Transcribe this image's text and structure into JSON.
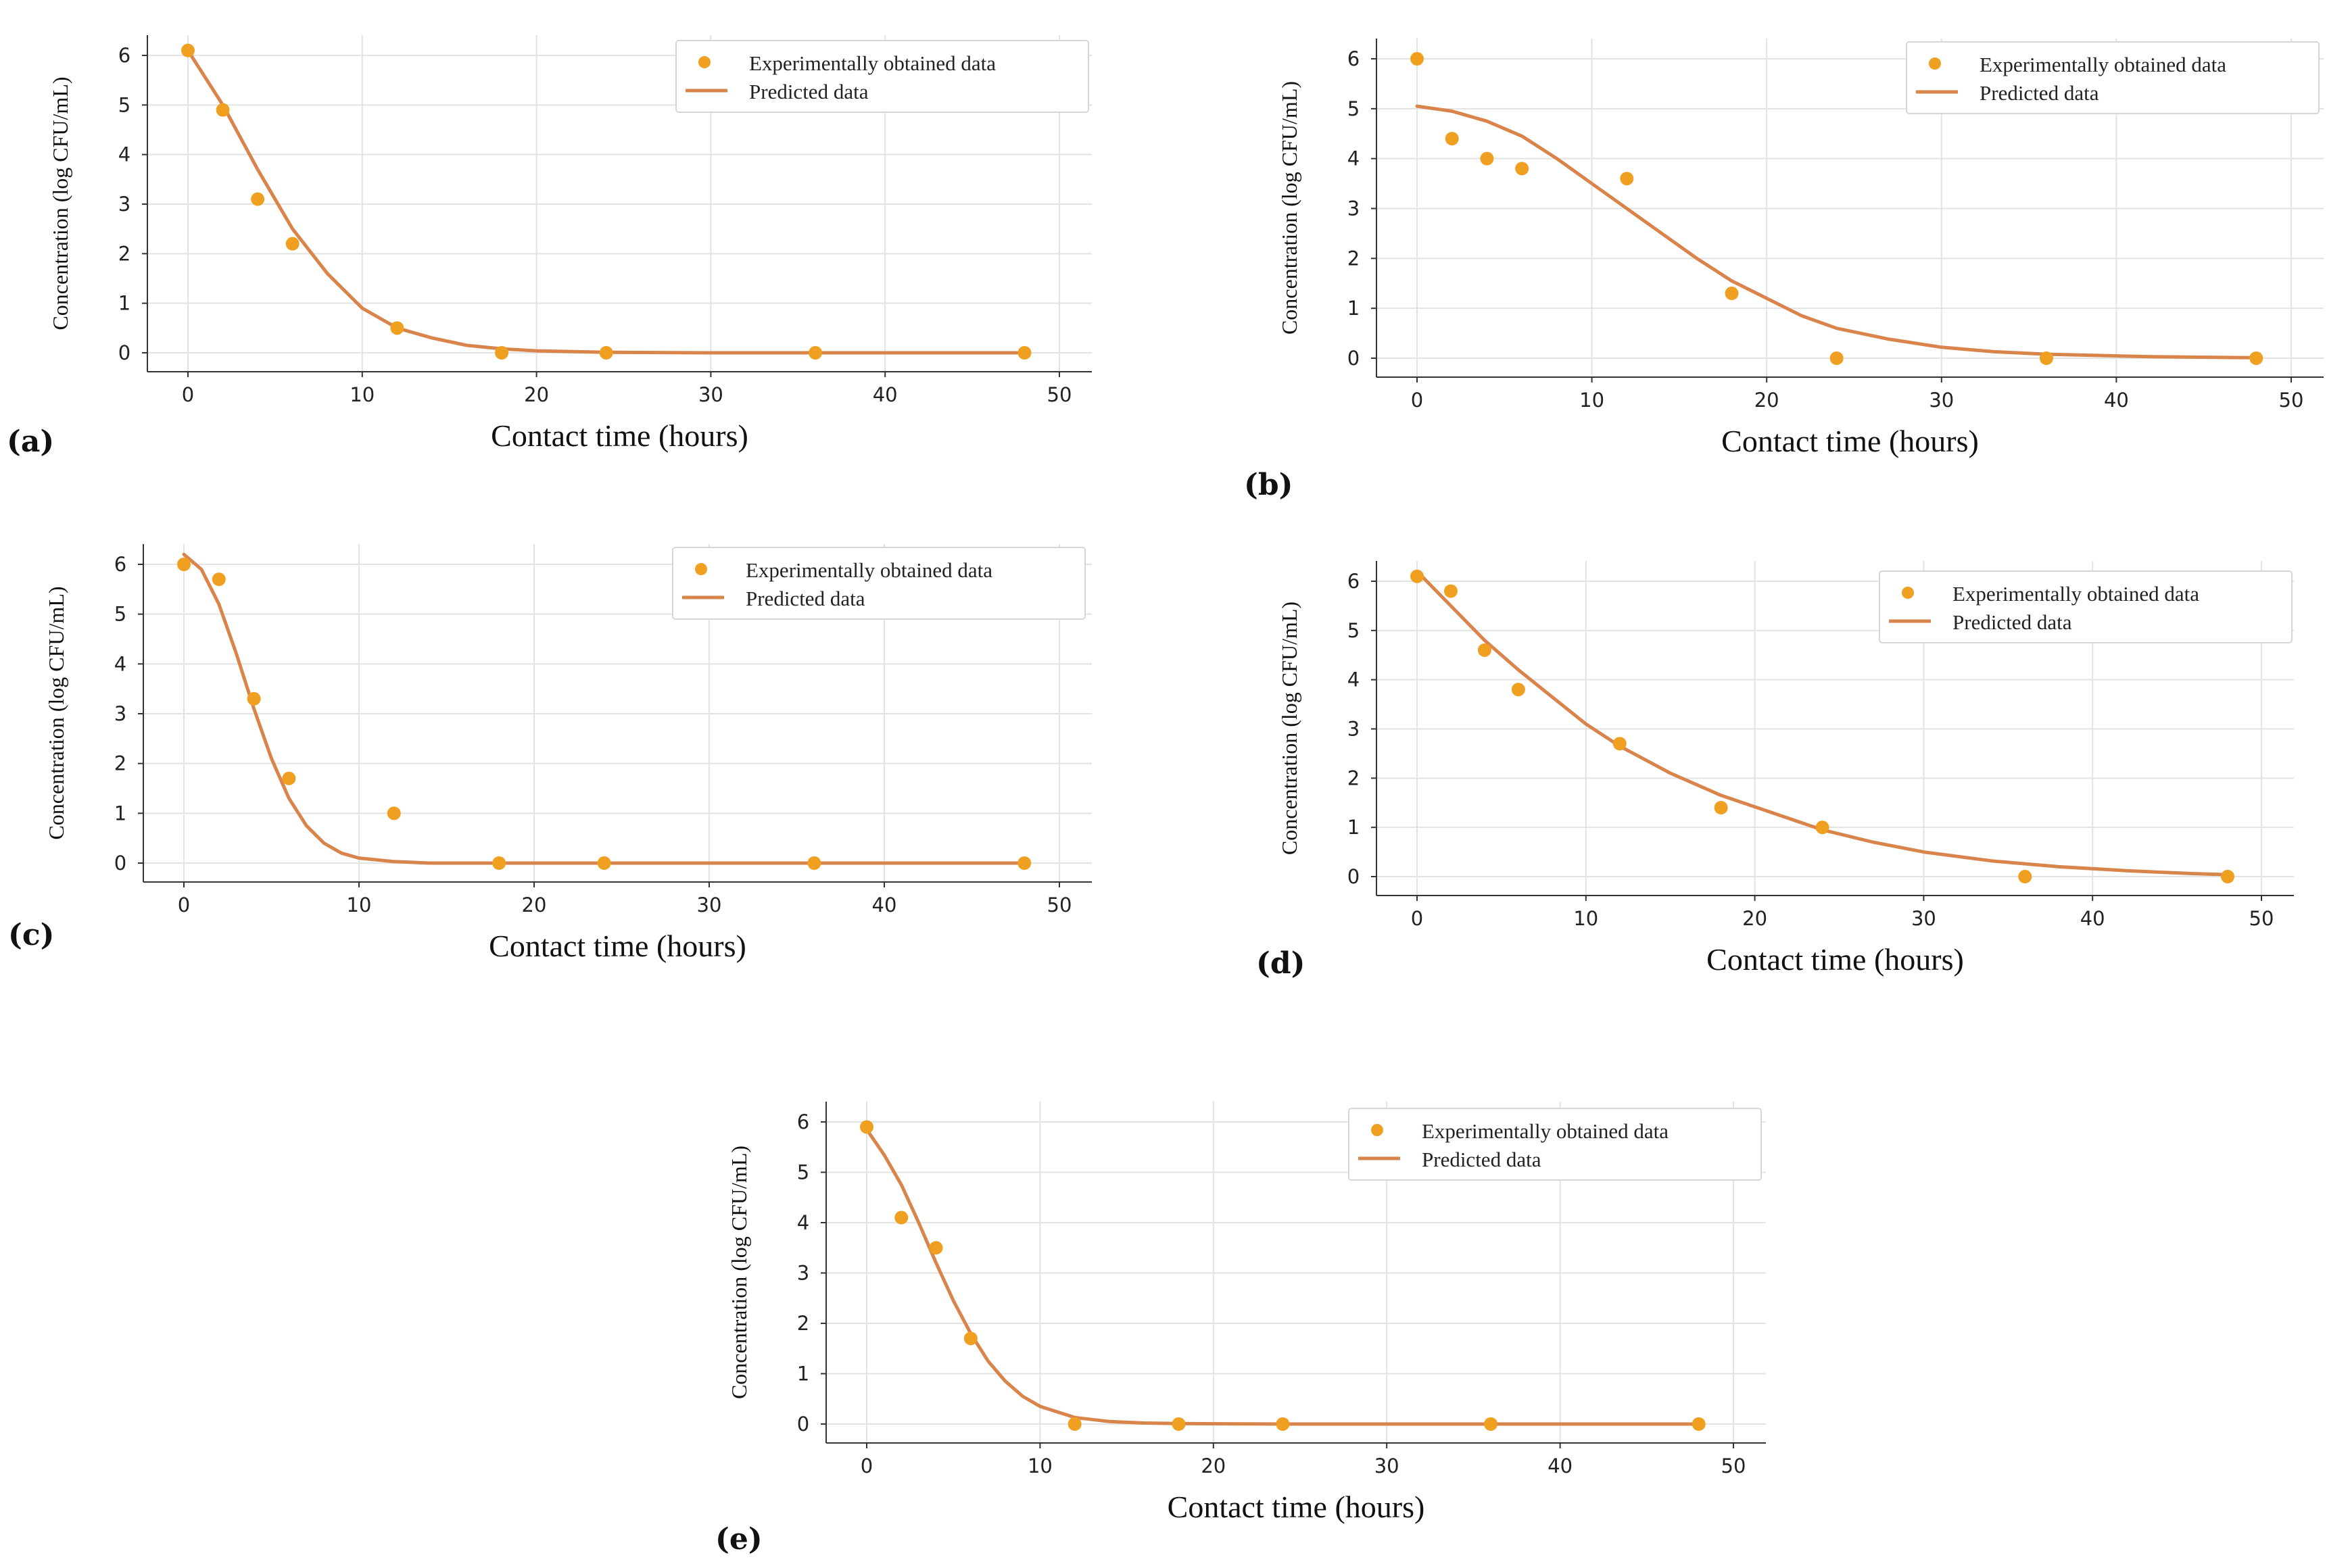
{
  "figure": {
    "xlabel": "Contact time (hours)",
    "ylabel": "Concentration (log CFU/mL)",
    "legend": {
      "experimental": "Experimentally obtained data",
      "predicted": "Predicted data"
    },
    "colors": {
      "points": "#f0a020",
      "line": "#d9844a"
    }
  },
  "chart_data": [
    {
      "panel": "(a)",
      "type": "scatter",
      "xlim": [
        0,
        50
      ],
      "ylim": [
        0,
        6
      ],
      "xticks": [
        0,
        10,
        20,
        30,
        40,
        50
      ],
      "yticks": [
        0,
        1,
        2,
        3,
        4,
        5,
        6
      ],
      "grid": true,
      "legend_position": "top-right",
      "series": [
        {
          "name": "Experimentally obtained data",
          "kind": "points",
          "x": [
            0,
            2,
            4,
            6,
            12,
            18,
            24,
            36,
            48
          ],
          "y": [
            6.1,
            4.9,
            3.1,
            2.2,
            0.5,
            0.0,
            0.0,
            0.0,
            0.0
          ]
        },
        {
          "name": "Predicted data",
          "kind": "line",
          "x": [
            0,
            2,
            4,
            6,
            8,
            10,
            12,
            14,
            16,
            18,
            20,
            24,
            30,
            36,
            42,
            48
          ],
          "y": [
            6.1,
            5.0,
            3.7,
            2.5,
            1.6,
            0.9,
            0.5,
            0.3,
            0.15,
            0.08,
            0.04,
            0.01,
            0.0,
            0.0,
            0.0,
            0.0
          ]
        }
      ]
    },
    {
      "panel": "(b)",
      "type": "scatter",
      "xlim": [
        0,
        50
      ],
      "ylim": [
        0,
        6
      ],
      "xticks": [
        0,
        10,
        20,
        30,
        40,
        50
      ],
      "yticks": [
        0,
        1,
        2,
        3,
        4,
        5,
        6
      ],
      "grid": true,
      "legend_position": "top-right",
      "series": [
        {
          "name": "Experimentally obtained data",
          "kind": "points",
          "x": [
            0,
            2,
            4,
            6,
            12,
            18,
            24,
            36,
            48
          ],
          "y": [
            6.0,
            4.4,
            4.0,
            3.8,
            3.6,
            1.3,
            0.0,
            0.0,
            0.0
          ]
        },
        {
          "name": "Predicted data",
          "kind": "line",
          "x": [
            0,
            2,
            4,
            6,
            8,
            10,
            12,
            14,
            16,
            18,
            20,
            22,
            24,
            27,
            30,
            33,
            36,
            42,
            48
          ],
          "y": [
            5.05,
            4.95,
            4.75,
            4.45,
            4.0,
            3.5,
            3.0,
            2.5,
            2.0,
            1.55,
            1.2,
            0.85,
            0.6,
            0.38,
            0.22,
            0.13,
            0.08,
            0.03,
            0.01
          ]
        }
      ]
    },
    {
      "panel": "(c)",
      "type": "scatter",
      "xlim": [
        0,
        50
      ],
      "ylim": [
        0,
        6
      ],
      "xticks": [
        0,
        10,
        20,
        30,
        40,
        50
      ],
      "yticks": [
        0,
        1,
        2,
        3,
        4,
        5,
        6
      ],
      "grid": true,
      "legend_position": "top-right",
      "series": [
        {
          "name": "Experimentally obtained data",
          "kind": "points",
          "x": [
            0,
            2,
            4,
            6,
            12,
            18,
            24,
            36,
            48
          ],
          "y": [
            6.0,
            5.7,
            3.3,
            1.7,
            1.0,
            0.0,
            0.0,
            0.0,
            0.0
          ]
        },
        {
          "name": "Predicted data",
          "kind": "line",
          "x": [
            0,
            1,
            2,
            3,
            4,
            5,
            6,
            7,
            8,
            9,
            10,
            12,
            14,
            18,
            24,
            36,
            48
          ],
          "y": [
            6.2,
            5.9,
            5.2,
            4.2,
            3.1,
            2.1,
            1.3,
            0.75,
            0.4,
            0.2,
            0.1,
            0.03,
            0.0,
            0.0,
            0.0,
            0.0,
            0.0
          ]
        }
      ]
    },
    {
      "panel": "(d)",
      "type": "scatter",
      "xlim": [
        0,
        50
      ],
      "ylim": [
        0,
        6
      ],
      "xticks": [
        0,
        10,
        20,
        30,
        40,
        50
      ],
      "yticks": [
        0,
        1,
        2,
        3,
        4,
        5,
        6
      ],
      "grid": true,
      "legend_position": "top-right",
      "series": [
        {
          "name": "Experimentally obtained data",
          "kind": "points",
          "x": [
            0,
            2,
            4,
            6,
            12,
            18,
            24,
            36,
            48
          ],
          "y": [
            6.1,
            5.8,
            4.6,
            3.8,
            2.7,
            1.4,
            1.0,
            0.0,
            0.0
          ]
        },
        {
          "name": "Predicted data",
          "kind": "line",
          "x": [
            0,
            2,
            4,
            6,
            8,
            10,
            12,
            15,
            18,
            21,
            24,
            27,
            30,
            34,
            38,
            42,
            46,
            48
          ],
          "y": [
            6.2,
            5.5,
            4.8,
            4.2,
            3.65,
            3.1,
            2.65,
            2.1,
            1.65,
            1.3,
            0.95,
            0.7,
            0.5,
            0.32,
            0.2,
            0.12,
            0.06,
            0.04
          ]
        }
      ]
    },
    {
      "panel": "(e)",
      "type": "scatter",
      "xlim": [
        0,
        50
      ],
      "ylim": [
        0,
        6
      ],
      "xticks": [
        0,
        10,
        20,
        30,
        40,
        50
      ],
      "yticks": [
        0,
        1,
        2,
        3,
        4,
        5,
        6
      ],
      "grid": true,
      "legend_position": "top-right",
      "series": [
        {
          "name": "Experimentally obtained data",
          "kind": "points",
          "x": [
            0,
            2,
            4,
            6,
            12,
            18,
            24,
            36,
            48
          ],
          "y": [
            5.9,
            4.1,
            3.5,
            1.7,
            0.0,
            0.0,
            0.0,
            0.0,
            0.0
          ]
        },
        {
          "name": "Predicted data",
          "kind": "line",
          "x": [
            0,
            1,
            2,
            3,
            4,
            5,
            6,
            7,
            8,
            9,
            10,
            12,
            14,
            16,
            18,
            24,
            36,
            48
          ],
          "y": [
            5.85,
            5.35,
            4.75,
            4.0,
            3.2,
            2.45,
            1.8,
            1.25,
            0.85,
            0.55,
            0.35,
            0.13,
            0.05,
            0.02,
            0.01,
            0.0,
            0.0,
            0.0
          ]
        }
      ]
    }
  ]
}
